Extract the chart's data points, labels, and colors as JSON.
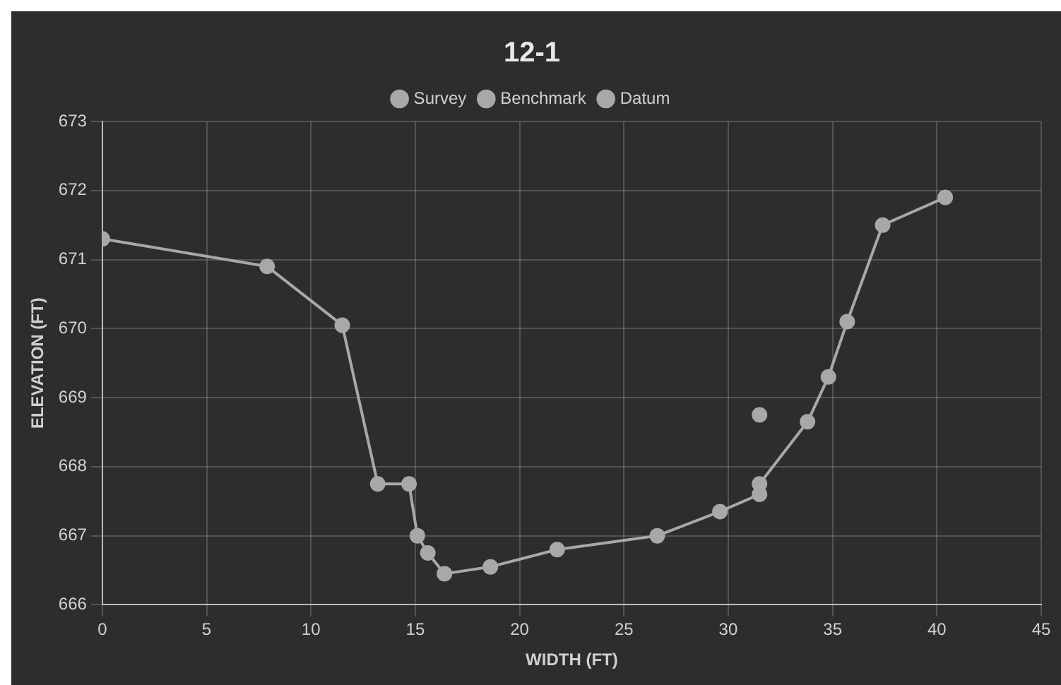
{
  "chart_data": {
    "type": "line",
    "title": "12-1",
    "xlabel": "WIDTH (FT)",
    "ylabel": "ELEVATION (FT)",
    "xlim": [
      0,
      45
    ],
    "xticks": [
      0,
      5,
      10,
      15,
      20,
      25,
      30,
      35,
      40,
      45
    ],
    "ylim": [
      666,
      673
    ],
    "yticks": [
      666,
      667,
      668,
      669,
      670,
      671,
      672,
      673
    ],
    "grid": true,
    "legend": "top",
    "marker": "circle",
    "line_style": "solid",
    "series": [
      {
        "name": "Survey",
        "type": "line",
        "color": "#a8a8a8",
        "x": [
          0,
          7.9,
          11.5,
          13.2,
          14.7,
          15.1,
          15.6,
          16.4,
          18.6,
          21.8,
          26.6,
          29.6,
          31.5,
          31.5,
          33.8,
          34.8,
          35.7,
          37.4,
          40.4
        ],
        "values": [
          671.3,
          670.9,
          670.05,
          667.75,
          667.75,
          667.0,
          666.75,
          666.45,
          666.55,
          666.8,
          667.0,
          667.35,
          667.6,
          667.75,
          668.65,
          669.3,
          670.1,
          671.5,
          671.9
        ]
      },
      {
        "name": "Benchmark",
        "type": "scatter",
        "color": "#a8a8a8",
        "x": [
          31.5
        ],
        "values": [
          668.75
        ]
      },
      {
        "name": "Datum",
        "type": "line",
        "color": "#a8a8a8"
      }
    ]
  }
}
